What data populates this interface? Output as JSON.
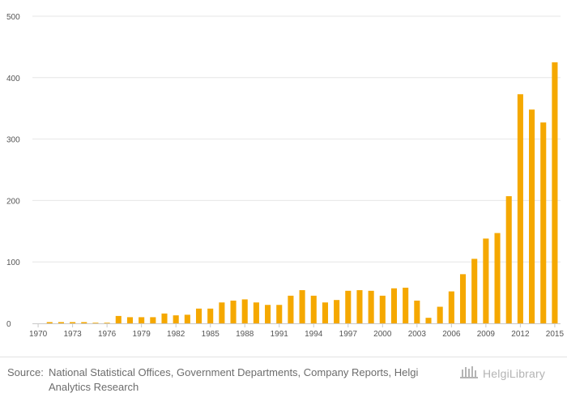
{
  "chart_data": {
    "type": "bar",
    "title": "",
    "xlabel": "",
    "ylabel": "",
    "ylim": [
      0,
      500
    ],
    "yticks": [
      0,
      100,
      200,
      300,
      400,
      500
    ],
    "xtick_labels": [
      "1970",
      "1973",
      "1976",
      "1979",
      "1982",
      "1985",
      "1988",
      "1991",
      "1994",
      "1997",
      "2000",
      "2003",
      "2006",
      "2009",
      "2012",
      "2015"
    ],
    "categories": [
      1970,
      1971,
      1972,
      1973,
      1974,
      1975,
      1976,
      1977,
      1978,
      1979,
      1980,
      1981,
      1982,
      1983,
      1984,
      1985,
      1986,
      1987,
      1988,
      1989,
      1990,
      1991,
      1992,
      1993,
      1994,
      1995,
      1996,
      1997,
      1998,
      1999,
      2000,
      2001,
      2002,
      2003,
      2004,
      2005,
      2006,
      2007,
      2008,
      2009,
      2010,
      2011,
      2012,
      2013,
      2014,
      2015
    ],
    "values": [
      0,
      2,
      2,
      2,
      2,
      1,
      1,
      12,
      10,
      10,
      10,
      16,
      13,
      14,
      24,
      24,
      34,
      37,
      39,
      34,
      30,
      30,
      45,
      54,
      45,
      34,
      38,
      53,
      54,
      53,
      45,
      57,
      58,
      37,
      9,
      27,
      52,
      80,
      105,
      138,
      147,
      207,
      373,
      348,
      327,
      425
    ],
    "series_color": "#f5a800",
    "grid": true
  },
  "footer": {
    "source_prefix": "Source:",
    "source_text": "National Statistical Offices, Government Departments, Company Reports, Helgi Analytics Research",
    "brand": "HelgiLibrary"
  }
}
